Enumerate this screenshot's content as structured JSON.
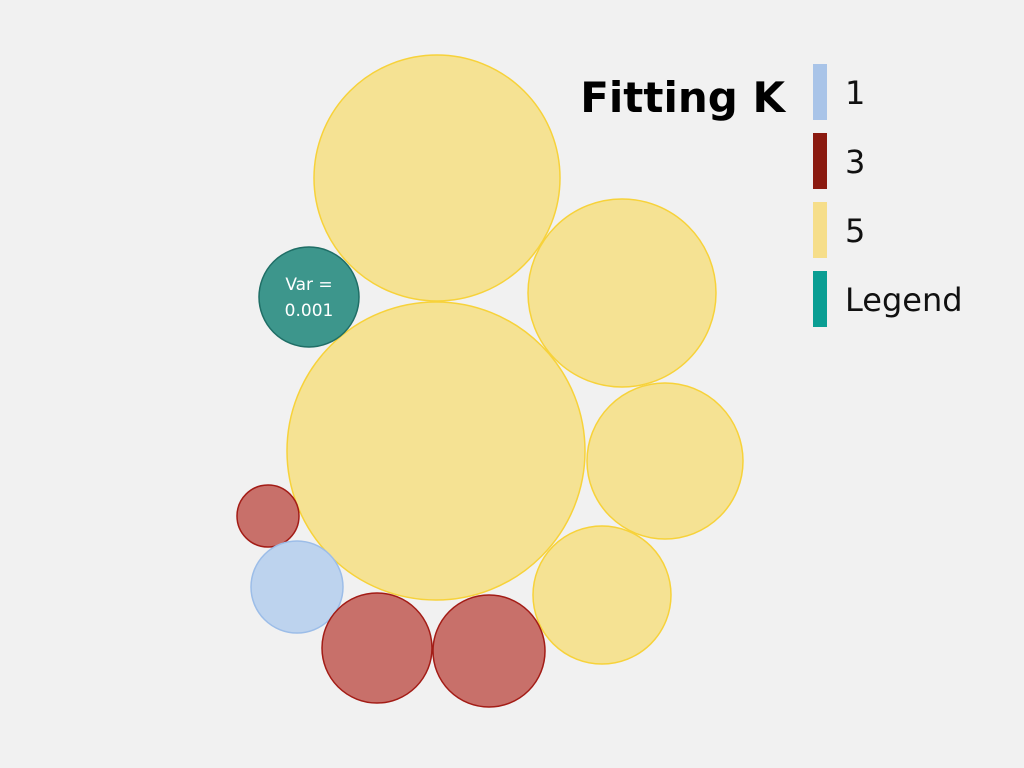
{
  "chart_data": {
    "type": "bubble",
    "legend": {
      "title": "Fitting K",
      "placement": "top-right",
      "entries": [
        {
          "label": "1",
          "color": "#a9c4e8"
        },
        {
          "label": "3",
          "color": "#8b1a10"
        },
        {
          "label": "5",
          "color": "#f6de8a"
        },
        {
          "label": "Legend",
          "color": "#0a9e93"
        }
      ]
    },
    "series_colors": {
      "1": {
        "fill": "#bdd3ee",
        "stroke": "#9cbde8"
      },
      "3": {
        "fill": "#c8706a",
        "stroke": "#a31c16"
      },
      "5": {
        "fill": "#f5e293",
        "stroke": "#f7d23a"
      },
      "Legend": {
        "fill": "#3d968c",
        "stroke": "#1f6e66"
      }
    },
    "bubbles": [
      {
        "group": "5",
        "size": 123
      },
      {
        "group": "5",
        "size": 94
      },
      {
        "group": "5",
        "size": 149
      },
      {
        "group": "5",
        "size": 78
      },
      {
        "group": "5",
        "size": 69
      },
      {
        "group": "3",
        "size": 31
      },
      {
        "group": "1",
        "size": 46
      },
      {
        "group": "3",
        "size": 55
      },
      {
        "group": "3",
        "size": 56
      },
      {
        "group": "Legend",
        "size": 50,
        "label_lines": [
          "Var =",
          "0.001"
        ]
      }
    ]
  }
}
